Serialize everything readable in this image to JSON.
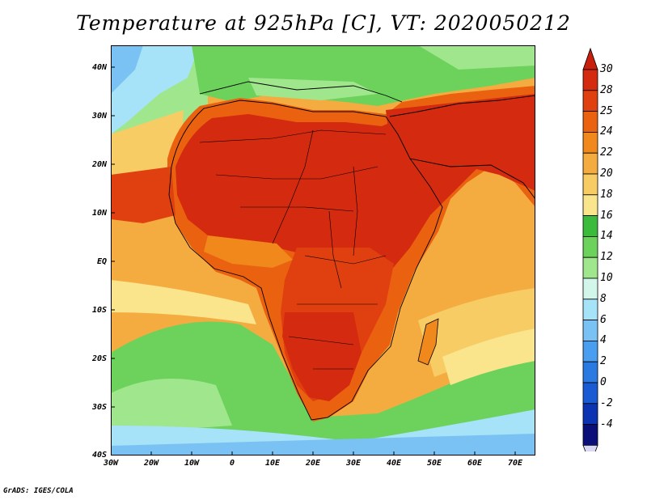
{
  "title": "Temperature at 925hPa [C], VT: 2020050212",
  "footer": "GrADS: IGES/COLA",
  "lat_labels": [
    "40N",
    "30N",
    "20N",
    "10N",
    "EQ",
    "10S",
    "20S",
    "30S",
    "40S"
  ],
  "lon_labels": [
    "30W",
    "20W",
    "10W",
    "0",
    "10E",
    "20E",
    "30E",
    "40E",
    "50E",
    "60E",
    "70E"
  ],
  "colorbar": {
    "labels": [
      "30",
      "28",
      "25",
      "24",
      "22",
      "20",
      "18",
      "16",
      "14",
      "12",
      "10",
      "8",
      "6",
      "4",
      "2",
      "0",
      "-2",
      "-4"
    ],
    "colors": [
      "#d42a10",
      "#e04010",
      "#ea6210",
      "#f0881c",
      "#f4ac40",
      "#f8cc64",
      "#fae58c",
      "#3cba3c",
      "#6cd25c",
      "#a0e68c",
      "#d2f6ea",
      "#a6e2f8",
      "#7ac2f4",
      "#4a9ef0",
      "#2a7ae2",
      "#1a5ad2",
      "#0c34b2",
      "#0a1078"
    ],
    "top_color": "#c81e0c",
    "bottom_color": "#d8d8f6"
  },
  "colors": {
    "frame": "#000000",
    "ocean_warm": "#f4ac40",
    "ocean_cool": "#6cd25c",
    "land_hot": "#dd2a0c"
  }
}
